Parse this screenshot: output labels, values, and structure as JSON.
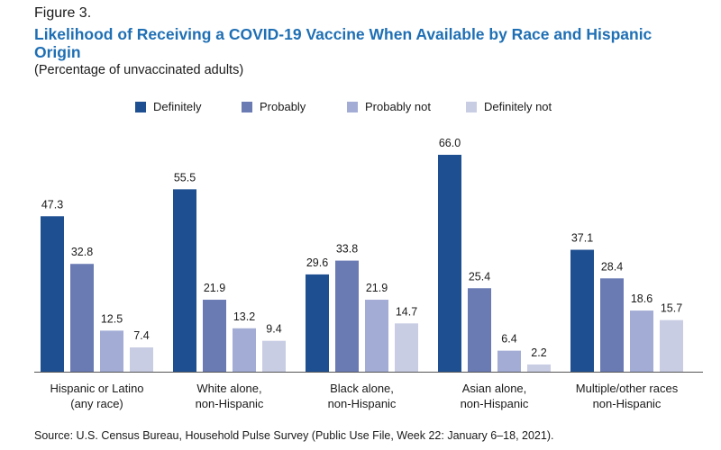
{
  "figure_label": "Figure 3.",
  "title": "Likelihood of Receiving a COVID-19 Vaccine When Available by Race and Hispanic Origin",
  "subtitle": "(Percentage of unvaccinated adults)",
  "source": "Source: U.S. Census Bureau, Household Pulse Survey (Public Use File, Week 22: January 6–18, 2021).",
  "chart_data": {
    "type": "bar",
    "title": "Likelihood of Receiving a COVID-19 Vaccine When Available by Race and Hispanic Origin",
    "xlabel": "",
    "ylabel": "",
    "ylim": [
      0,
      66
    ],
    "grid": false,
    "legend_position": "top",
    "categories": [
      [
        "Hispanic or Latino",
        "(any race)"
      ],
      [
        "White alone,",
        "non-Hispanic"
      ],
      [
        "Black alone,",
        "non-Hispanic"
      ],
      [
        "Asian alone,",
        "non-Hispanic"
      ],
      [
        "Multiple/other races",
        "non-Hispanic"
      ]
    ],
    "series": [
      {
        "name": "Definitely",
        "color": "#1d4f91",
        "values": [
          47.3,
          55.5,
          29.6,
          66.0,
          37.1
        ]
      },
      {
        "name": "Probably",
        "color": "#6a7bb4",
        "values": [
          32.8,
          21.9,
          33.8,
          25.4,
          28.4
        ]
      },
      {
        "name": "Probably not",
        "color": "#a3acd5",
        "values": [
          12.5,
          13.2,
          21.9,
          6.4,
          18.6
        ]
      },
      {
        "name": "Definitely not",
        "color": "#c9cde4",
        "values": [
          7.4,
          9.4,
          14.7,
          2.2,
          15.7
        ]
      }
    ]
  }
}
